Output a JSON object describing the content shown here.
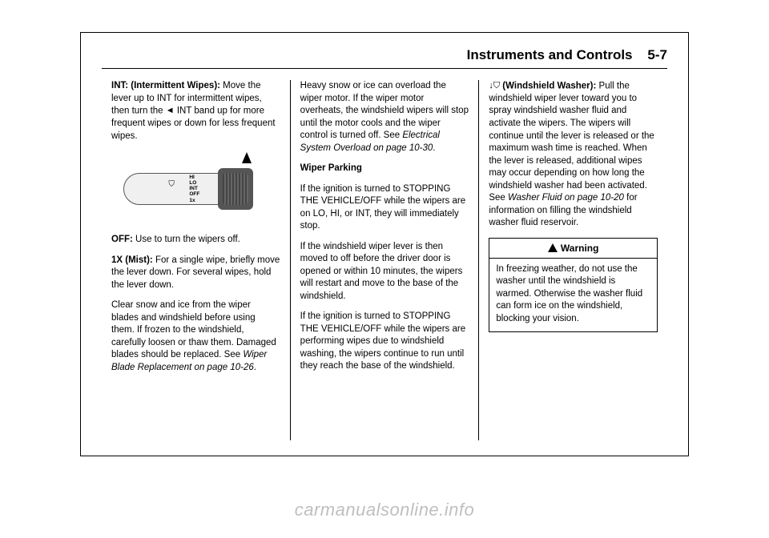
{
  "header": {
    "section": "Instruments and Controls",
    "page": "5-7"
  },
  "col1": {
    "p1_bold": "INT: (Intermittent Wipes):",
    "p1_rest_a": " Move the lever up to INT for intermittent wipes, then turn the ",
    "p1_icon": "◄",
    "p1_rest_b": " INT band up for more frequent wipes or down for less frequent wipes.",
    "img_labels": [
      "HI",
      "LO",
      "INT",
      "OFF",
      "1x"
    ],
    "p2_bold": "OFF:",
    "p2_rest": " Use to turn the wipers off.",
    "p3_bold": "1X (Mist):",
    "p3_rest": " For a single wipe, briefly move the lever down. For several wipes, hold the lever down.",
    "p4": "Clear snow and ice from the wiper blades and windshield before using them. If frozen to the windshield, carefully loosen or thaw them. Damaged blades should be replaced. See ",
    "p4_ref": "Wiper Blade Replacement on page 10-26",
    "p4_end": "."
  },
  "col2": {
    "p1": "Heavy snow or ice can overload the wiper motor. If the wiper motor overheats, the windshield wipers will stop until the motor cools and the wiper control is turned off. See ",
    "p1_ref": "Electrical System Overload on page 10-30",
    "p1_end": ".",
    "h1": "Wiper Parking",
    "p2": "If the ignition is turned to STOPPING THE VEHICLE/OFF while the wipers are on LO, HI, or INT, they will immediately stop.",
    "p3": "If the windshield wiper lever is then moved to off before the driver door is opened or within 10 minutes, the wipers will restart and move to the base of the windshield.",
    "p4": "If the ignition is turned to STOPPING THE VEHICLE/OFF while the wipers are performing wipes due to windshield washing, the wipers continue to run until they reach the base of the windshield."
  },
  "col3": {
    "p1_icon": "↓",
    "p1_bold": " (Windshield Washer):",
    "p1_rest": " Pull the windshield wiper lever toward you to spray windshield washer fluid and activate the wipers. The wipers will continue until the lever is released or the maximum wash time is reached. When the lever is released, additional wipes may occur depending on how long the windshield washer had been activated. See ",
    "p1_ref": "Washer Fluid on page 10-20",
    "p1_end": " for information on filling the windshield washer fluid reservoir.",
    "warning_title": "Warning",
    "warning_body": "In freezing weather, do not use the washer until the windshield is warmed. Otherwise the washer fluid can form ice on the windshield, blocking your vision."
  },
  "watermark": "carmanualsonline.info"
}
